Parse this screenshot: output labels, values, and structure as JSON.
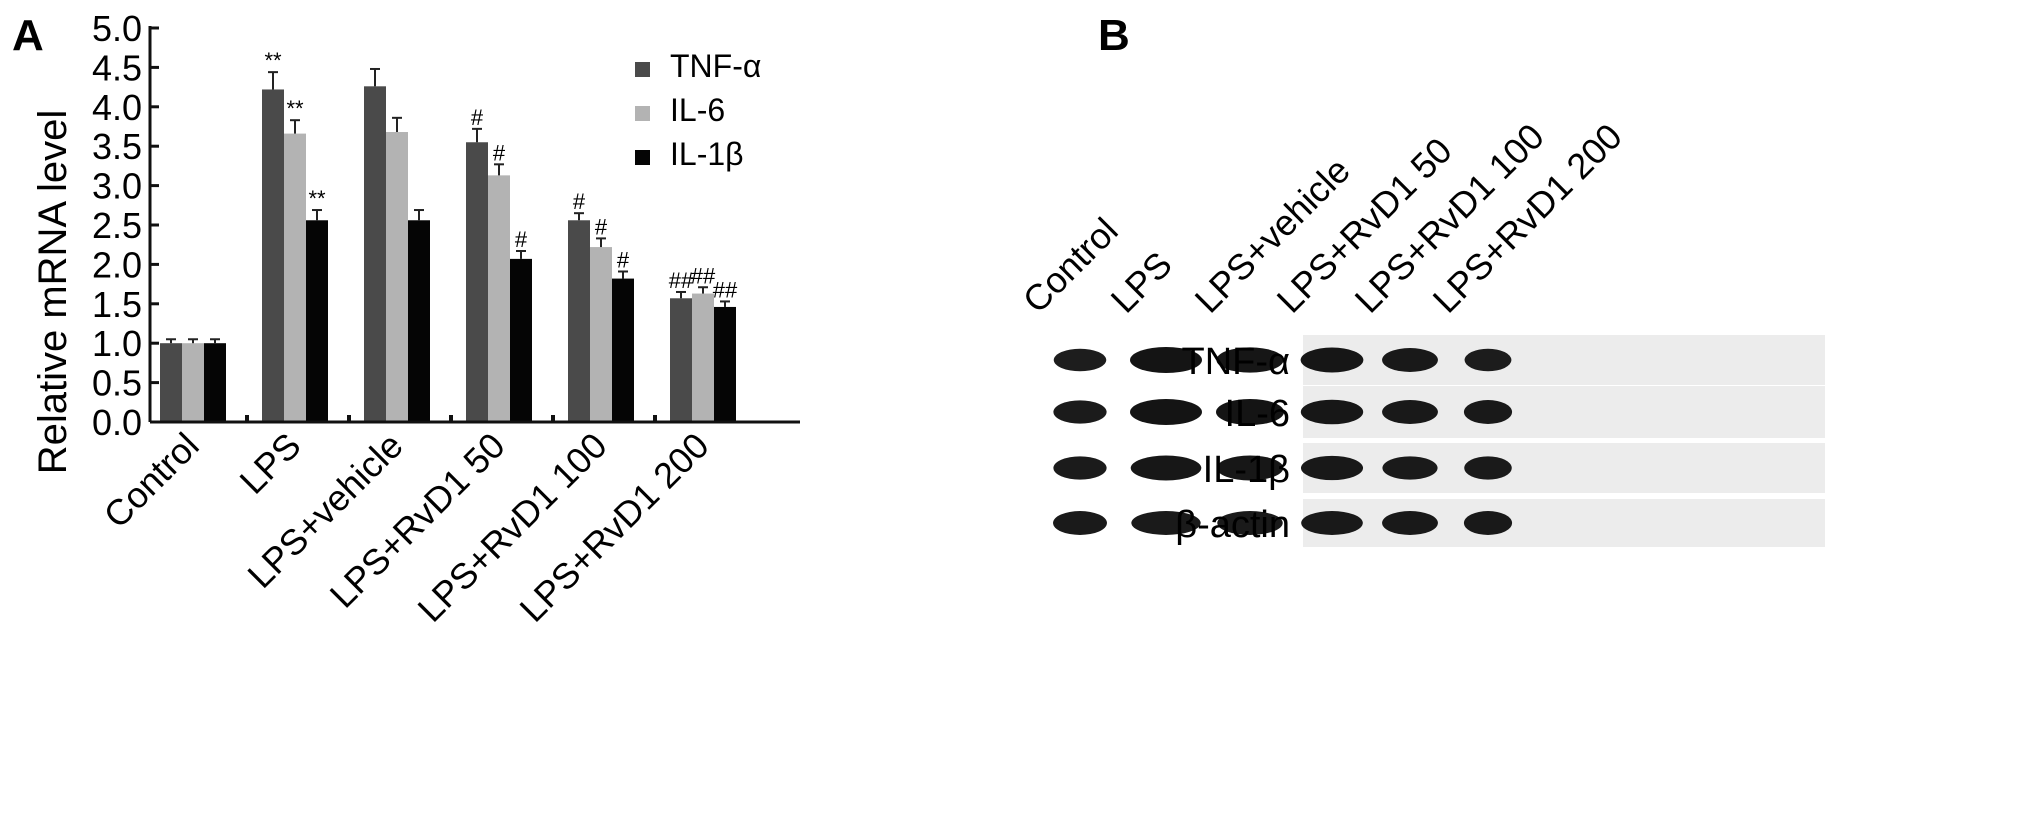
{
  "panels": {
    "a_label": "A",
    "b_label": "B"
  },
  "colors": {
    "TNF-α": "#4a4a4a",
    "IL-6": "#b3b3b3",
    "IL-1β": "#050505"
  },
  "chart_data": {
    "type": "bar",
    "ylabel": "Relative mRNA level",
    "xlabel": "",
    "ylim": [
      0,
      5.0
    ],
    "yticks": [
      "0.0",
      "0.5",
      "1.0",
      "1.5",
      "2.0",
      "2.5",
      "3.0",
      "3.5",
      "4.0",
      "4.5",
      "5.0"
    ],
    "legend_position": "top-right",
    "categories": [
      "Control",
      "LPS",
      "LPS+vehicle",
      "LPS+RvD1 50",
      "LPS+RvD1 100",
      "LPS+RvD1 200"
    ],
    "series": [
      {
        "name": "TNF-α",
        "values": [
          1.0,
          4.22,
          4.26,
          3.55,
          2.56,
          1.57
        ],
        "errors": [
          0.05,
          0.22,
          0.22,
          0.17,
          0.09,
          0.08
        ],
        "annotations": [
          "",
          "**",
          "",
          "#",
          "#",
          "##"
        ]
      },
      {
        "name": "IL-6",
        "values": [
          1.0,
          3.66,
          3.68,
          3.13,
          2.22,
          1.63
        ],
        "errors": [
          0.05,
          0.17,
          0.18,
          0.14,
          0.11,
          0.08
        ],
        "annotations": [
          "",
          "**",
          "",
          "#",
          "#",
          "##"
        ]
      },
      {
        "name": "IL-1β",
        "values": [
          1.0,
          2.56,
          2.56,
          2.07,
          1.82,
          1.46
        ],
        "errors": [
          0.05,
          0.13,
          0.13,
          0.1,
          0.09,
          0.07
        ],
        "annotations": [
          "",
          "**",
          "",
          "#",
          "#",
          "##"
        ]
      }
    ]
  },
  "blot": {
    "lane_labels": [
      "Control",
      "LPS",
      "LPS+vehicle",
      "LPS+RvD1 50",
      "LPS+RvD1 100",
      "LPS+RvD1 200"
    ],
    "rows": [
      {
        "label": "TNF-α",
        "band_intensity": [
          0.75,
          1.0,
          0.95,
          0.92,
          0.85,
          0.75
        ]
      },
      {
        "label": "IL-6",
        "band_intensity": [
          0.8,
          1.0,
          1.0,
          0.9,
          0.85,
          0.85
        ]
      },
      {
        "label": "IL-1β",
        "band_intensity": [
          0.8,
          0.92,
          0.92,
          0.88,
          0.8,
          0.8
        ]
      },
      {
        "label": "β-actin",
        "band_intensity": [
          0.85,
          0.85,
          0.85,
          0.85,
          0.85,
          0.85
        ]
      }
    ]
  }
}
